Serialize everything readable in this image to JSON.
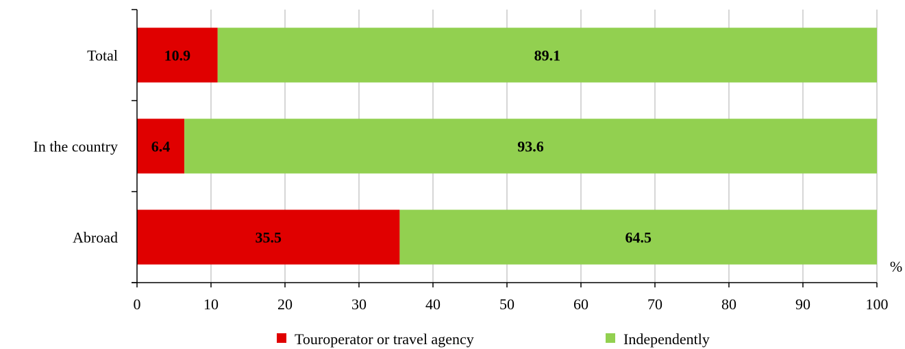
{
  "chart_data": {
    "type": "bar",
    "orientation": "horizontal",
    "stacked": true,
    "categories": [
      "Total",
      "In the country",
      "Abroad"
    ],
    "series": [
      {
        "name": "Touroperator or travel agency",
        "values": [
          10.9,
          6.4,
          35.5
        ],
        "color": "#e00000"
      },
      {
        "name": "Independently",
        "values": [
          89.1,
          93.6,
          64.5
        ],
        "color": "#92d050"
      }
    ],
    "xlabel": "%",
    "xlim": [
      0,
      100
    ],
    "xticks": [
      0,
      10,
      20,
      30,
      40,
      50,
      60,
      70,
      80,
      90,
      100
    ],
    "grid": true,
    "legend_position": "bottom"
  }
}
